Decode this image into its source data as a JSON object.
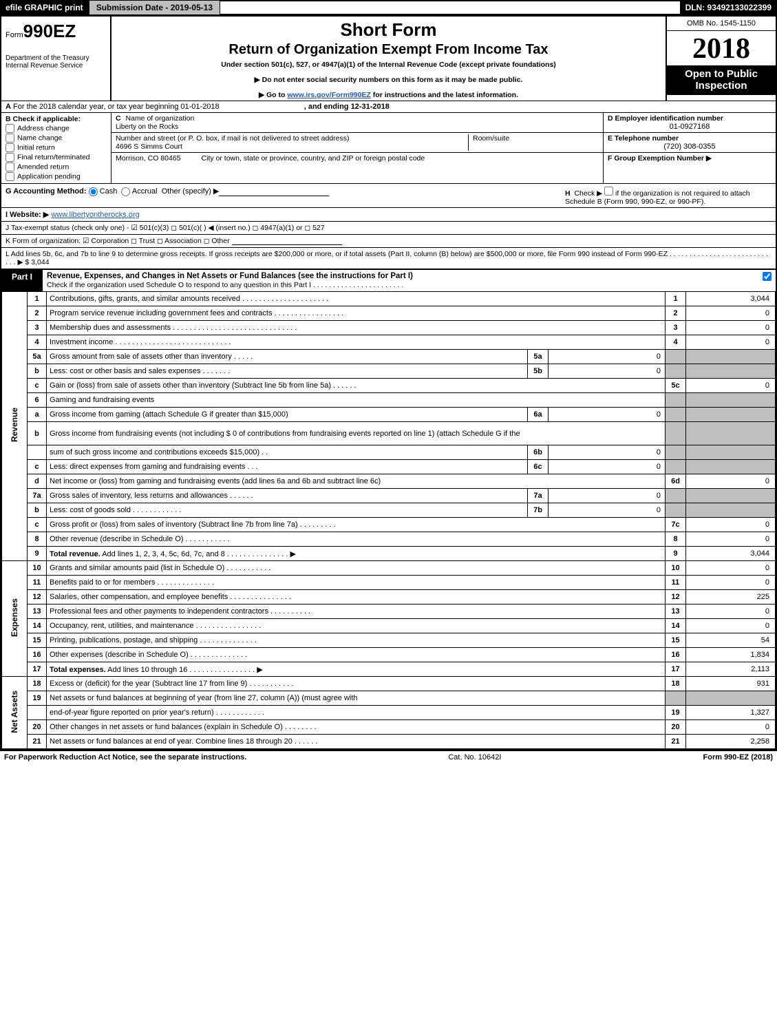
{
  "topbar": {
    "efile": "efile GRAPHIC print",
    "submission": "Submission Date - 2019-05-13",
    "dln": "DLN: 93492133022399"
  },
  "header": {
    "form_prefix": "Form",
    "form_no": "990EZ",
    "title1": "Short Form",
    "title2": "Return of Organization Exempt From Income Tax",
    "under": "Under section 501(c), 527, or 4947(a)(1) of the Internal Revenue Code (except private foundations)",
    "line1": "▶ Do not enter social security numbers on this form as it may be made public.",
    "line2_pre": "▶ Go to ",
    "line2_link": "www.irs.gov/Form990EZ",
    "line2_post": " for instructions and the latest information.",
    "dept1": "Department of the Treasury",
    "dept2": "Internal Revenue Service",
    "omb": "OMB No. 1545-1150",
    "year": "2018",
    "open1": "Open to Public",
    "open2": "Inspection"
  },
  "lineA": {
    "label_a": "A",
    "text": "For the 2018 calendar year, or tax year beginning 01-01-2018",
    "ending": ", and ending 12-31-2018"
  },
  "colB": {
    "label": "B",
    "header": "Check if applicable:",
    "items": [
      "Address change",
      "Name change",
      "Initial return",
      "Final return/terminated",
      "Amended return",
      "Application pending"
    ]
  },
  "colC": {
    "c_label": "C",
    "c_text": "Name of organization",
    "c_val": "Liberty on the Rocks",
    "addr_label": "Number and street (or P. O. box, if mail is not delivered to street address)",
    "addr_val": "4696 S Simms Court",
    "room_label": "Room/suite",
    "city_label": "City or town, state or province, country, and ZIP or foreign postal code",
    "city_val": "Morrison, CO  80465"
  },
  "colDEF": {
    "d_label": "D Employer identification number",
    "d_val": "01-0927168",
    "e_label": "E Telephone number",
    "e_val": "(720) 308-0355",
    "f_label": "F Group Exemption Number  ▶"
  },
  "rowG": {
    "label": "G Accounting Method:",
    "cash": "Cash",
    "accrual": "Accrual",
    "other": "Other (specify) ▶"
  },
  "rowH": {
    "label": "H",
    "text1": "Check ▶",
    "text2": "if the organization is not required to attach Schedule B (Form 990, 990-EZ, or 990-PF)."
  },
  "rowI": {
    "label": "I Website: ▶",
    "val": "www.libertyontherocks.org"
  },
  "rowJ": {
    "text": "J Tax-exempt status (check only one) -  ☑ 501(c)(3)  ◻ 501(c)(  ) ◀ (insert no.)  ◻ 4947(a)(1) or  ◻ 527"
  },
  "rowK": {
    "text": "K Form of organization:  ☑ Corporation   ◻ Trust   ◻ Association   ◻ Other"
  },
  "rowL": {
    "text": "L Add lines 5b, 6c, and 7b to line 9 to determine gross receipts. If gross receipts are $200,000 or more, or if total assets (Part II, column (B) below) are $500,000 or more, file Form 990 instead of Form 990-EZ  .  .  .  .  .  .  .  .  .  .  .  .  .  .  .  .  .  .  .  .  .  .  .  .  .  .  .  .  ▶ $ 3,044"
  },
  "part1": {
    "tab": "Part I",
    "title": "Revenue, Expenses, and Changes in Net Assets or Fund Balances (see the instructions for Part I)",
    "sub": "Check if the organization used Schedule O to respond to any question in this Part I .  .  .  .  .  .  .  .  .  .  .  .  .  .  .  .  .  .  .  .  .  .  ."
  },
  "sections": {
    "revenue": "Revenue",
    "expenses": "Expenses",
    "netassets": "Net Assets"
  },
  "lines": [
    {
      "sec": "revenue",
      "n": "1",
      "d": "Contributions, gifts, grants, and similar amounts received  .  .  .  .  .  .  .  .  .  .  .  .  .  .  .  .  .  .  .  .  .",
      "c": "1",
      "v": "3,044"
    },
    {
      "sec": "revenue",
      "n": "2",
      "d": "Program service revenue including government fees and contracts  .  .  .  .  .  .  .  .  .  .  .  .  .  .  .  .  .",
      "c": "2",
      "v": "0"
    },
    {
      "sec": "revenue",
      "n": "3",
      "d": "Membership dues and assessments  .  .  .  .  .  .  .  .  .  .  .  .  .  .  .  .  .  .  .  .  .  .  .  .  .  .  .  .  .  .",
      "c": "3",
      "v": "0"
    },
    {
      "sec": "revenue",
      "n": "4",
      "d": "Investment income  .  .  .  .  .  .  .  .  .  .  .  .  .  .  .  .  .  .  .  .  .  .  .  .  .  .  .  .",
      "c": "4",
      "v": "0"
    },
    {
      "sec": "revenue",
      "n": "5a",
      "d": "Gross amount from sale of assets other than inventory  .  .  .  .  .",
      "mc": "5a",
      "mv": "0",
      "shade": true
    },
    {
      "sec": "revenue",
      "n": "b",
      "d": "Less: cost or other basis and sales expenses  .  .  .  .  .  .  .",
      "mc": "5b",
      "mv": "0",
      "shade": true
    },
    {
      "sec": "revenue",
      "n": "c",
      "d": "Gain or (loss) from sale of assets other than inventory (Subtract line 5b from line 5a)            .  .  .  .  .  .",
      "c": "5c",
      "v": "0"
    },
    {
      "sec": "revenue",
      "n": "6",
      "d": "Gaming and fundraising events",
      "shade": true,
      "blank": true
    },
    {
      "sec": "revenue",
      "n": "a",
      "d": "Gross income from gaming (attach Schedule G if greater than $15,000)",
      "mc": "6a",
      "mv": "0",
      "shade": true
    },
    {
      "sec": "revenue",
      "n": "b",
      "d": "Gross income from fundraising events (not including $  0               of contributions from fundraising events reported on line 1) (attach Schedule G if the",
      "shade": true,
      "noml": true,
      "tall": true
    },
    {
      "sec": "revenue",
      "n": "",
      "d": "sum of such gross income and contributions exceeds $15,000)       .   .",
      "mc": "6b",
      "mv": "0",
      "shade": true
    },
    {
      "sec": "revenue",
      "n": "c",
      "d": "Less: direct expenses from gaming and fundraising events        .   .   .",
      "mc": "6c",
      "mv": "0",
      "shade": true
    },
    {
      "sec": "revenue",
      "n": "d",
      "d": "Net income or (loss) from gaming and fundraising events (add lines 6a and 6b and subtract line 6c)",
      "c": "6d",
      "v": "0"
    },
    {
      "sec": "revenue",
      "n": "7a",
      "d": "Gross sales of inventory, less returns and allowances         .  .  .  .  .  .",
      "mc": "7a",
      "mv": "0",
      "shade": true
    },
    {
      "sec": "revenue",
      "n": "b",
      "d": "Less: cost of goods sold                    .  .  .  .  .  .  .  .  .  .  .  .",
      "mc": "7b",
      "mv": "0",
      "shade": true
    },
    {
      "sec": "revenue",
      "n": "c",
      "d": "Gross profit or (loss) from sales of inventory (Subtract line 7b from line 7a)            .  .  .  .  .  .  .  .  .",
      "c": "7c",
      "v": "0"
    },
    {
      "sec": "revenue",
      "n": "8",
      "d": "Other revenue (describe in Schedule O)                      .  .  .  .  .  .  .  .  .  .  .",
      "c": "8",
      "v": "0"
    },
    {
      "sec": "revenue",
      "n": "9",
      "d": "Total revenue. Add lines 1, 2, 3, 4, 5c, 6d, 7c, and 8        .  .  .  .  .  .  .  .  .  .  .  .  .  .  .   ▶",
      "c": "9",
      "v": "3,044",
      "bold": true
    },
    {
      "sec": "expenses",
      "n": "10",
      "d": "Grants and similar amounts paid (list in Schedule O)              .  .  .  .  .  .  .  .  .  .  .",
      "c": "10",
      "v": "0"
    },
    {
      "sec": "expenses",
      "n": "11",
      "d": "Benefits paid to or for members                .  .  .  .  .  .  .  .  .  .  .  .  .  .",
      "c": "11",
      "v": "0"
    },
    {
      "sec": "expenses",
      "n": "12",
      "d": "Salaries, other compensation, and employee benefits       .  .  .  .  .  .  .  .  .  .  .  .  .  .  .",
      "c": "12",
      "v": "225"
    },
    {
      "sec": "expenses",
      "n": "13",
      "d": "Professional fees and other payments to independent contractors        .  .  .  .  .  .  .  .  .  .",
      "c": "13",
      "v": "0"
    },
    {
      "sec": "expenses",
      "n": "14",
      "d": "Occupancy, rent, utilities, and maintenance         .  .  .  .  .  .  .  .  .  .  .  .  .  .  .  .",
      "c": "14",
      "v": "0"
    },
    {
      "sec": "expenses",
      "n": "15",
      "d": "Printing, publications, postage, and shipping            .  .  .  .  .  .  .  .  .  .  .  .  .  .",
      "c": "15",
      "v": "54"
    },
    {
      "sec": "expenses",
      "n": "16",
      "d": "Other expenses (describe in Schedule O)               .  .  .  .  .  .  .  .  .  .  .  .  .  .",
      "c": "16",
      "v": "1,834"
    },
    {
      "sec": "expenses",
      "n": "17",
      "d": "Total expenses. Add lines 10 through 16          .  .  .  .  .  .  .  .  .  .  .  .  .  .  .  .   ▶",
      "c": "17",
      "v": "2,113",
      "bold": true
    },
    {
      "sec": "netassets",
      "n": "18",
      "d": "Excess or (deficit) for the year (Subtract line 17 from line 9)             .  .  .  .  .  .  .  .  .  .  .",
      "c": "18",
      "v": "931"
    },
    {
      "sec": "netassets",
      "n": "19",
      "d": "Net assets or fund balances at beginning of year (from line 27, column (A)) (must agree with",
      "shade": true,
      "noml": true
    },
    {
      "sec": "netassets",
      "n": "",
      "d": "end-of-year figure reported on prior year's return)             .  .  .  .  .  .  .  .  .  .  .  .",
      "c": "19",
      "v": "1,327"
    },
    {
      "sec": "netassets",
      "n": "20",
      "d": "Other changes in net assets or fund balances (explain in Schedule O)          .  .  .  .  .  .  .  .",
      "c": "20",
      "v": "0"
    },
    {
      "sec": "netassets",
      "n": "21",
      "d": "Net assets or fund balances at end of year. Combine lines 18 through 20          .  .  .  .  .  .",
      "c": "21",
      "v": "2,258"
    }
  ],
  "footer": {
    "left": "For Paperwork Reduction Act Notice, see the separate instructions.",
    "mid": "Cat. No. 10642I",
    "right": "Form 990-EZ (2018)"
  },
  "colors": {
    "black": "#000000",
    "grey": "#bfbfbf",
    "link": "#2a5db0"
  }
}
